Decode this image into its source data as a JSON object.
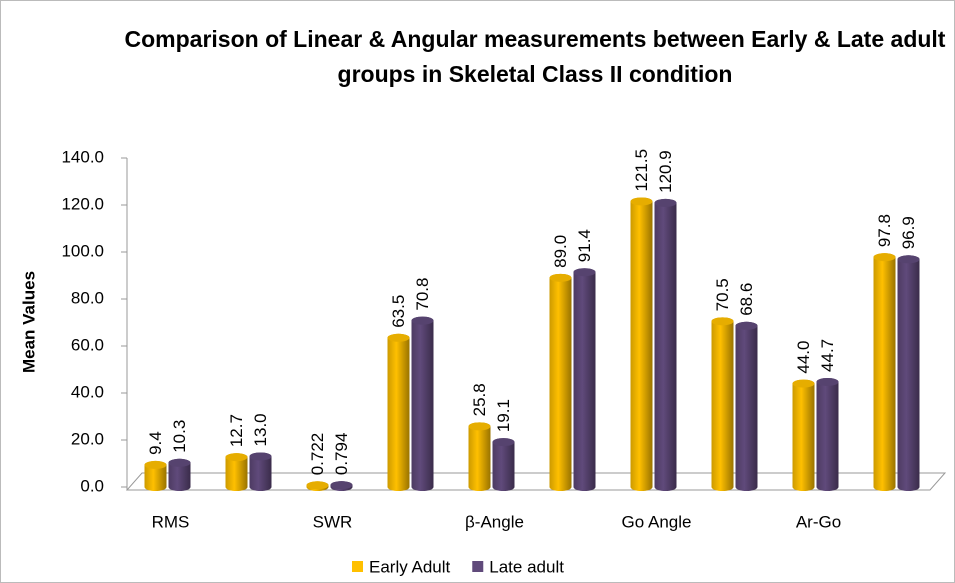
{
  "chart_data": {
    "type": "bar",
    "title": "Comparison of Linear & Angular measurements between Early & Late adult groups in Skeletal Class II condition",
    "y_label": "Mean Values",
    "categories": [
      "RMS",
      null,
      "SWR",
      null,
      "β-Angle",
      null,
      "Go Angle",
      null,
      "Ar-Go",
      null
    ],
    "series": [
      {
        "name": "Early Adult",
        "color": "#FFC000",
        "values": [
          9.4,
          12.7,
          0.722,
          63.5,
          25.8,
          89.0,
          121.5,
          70.5,
          44.0,
          97.8
        ],
        "value_labels": [
          "9.4",
          "12.7",
          "0.722",
          "63.5",
          "25.8",
          "89.0",
          "121.5",
          "70.5",
          "44.0",
          "97.8"
        ]
      },
      {
        "name": "Late adult",
        "color": "#604A7B",
        "values": [
          10.3,
          13.0,
          0.794,
          70.8,
          19.1,
          91.4,
          120.9,
          68.6,
          44.7,
          96.9
        ],
        "value_labels": [
          "10.3",
          "13.0",
          "0.794",
          "70.8",
          "19.1",
          "91.4",
          "120.9",
          "68.6",
          "44.7",
          "96.9"
        ]
      }
    ],
    "ylim": [
      0,
      140
    ],
    "yticks": [
      {
        "value": 0,
        "label": "0.0"
      },
      {
        "value": 20,
        "label": "20.0"
      },
      {
        "value": 40,
        "label": "40.0"
      },
      {
        "value": 60,
        "label": "60.0"
      },
      {
        "value": 80,
        "label": "80.0"
      },
      {
        "value": 100,
        "label": "100.0"
      },
      {
        "value": 120,
        "label": "120.0"
      },
      {
        "value": 140,
        "label": "140.0"
      }
    ],
    "legend": "bottom"
  }
}
